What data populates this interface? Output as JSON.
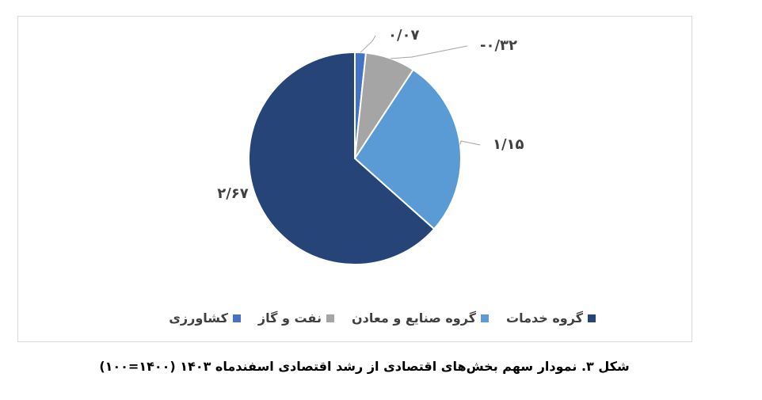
{
  "chart_data": {
    "type": "pie",
    "categories": [
      "کشاورزی",
      "نفت و گاز",
      "گروه صنایع و معادن",
      "گروه خدمات"
    ],
    "values": [
      0.07,
      -0.32,
      1.15,
      2.67
    ],
    "value_labels": [
      "۰/۰۷",
      "-۰/۳۲",
      "۱/۱۵",
      "۲/۶۷"
    ],
    "colors": [
      "#4472c4",
      "#a5a5a5",
      "#5b9bd5",
      "#264478"
    ],
    "caption": "شکل ۳. نمودار سهم بخش‌های اقتصادی از رشد اقتصادی اسفندماه ۱۴۰۳ (۱۴۰۰=۱۰۰)"
  }
}
